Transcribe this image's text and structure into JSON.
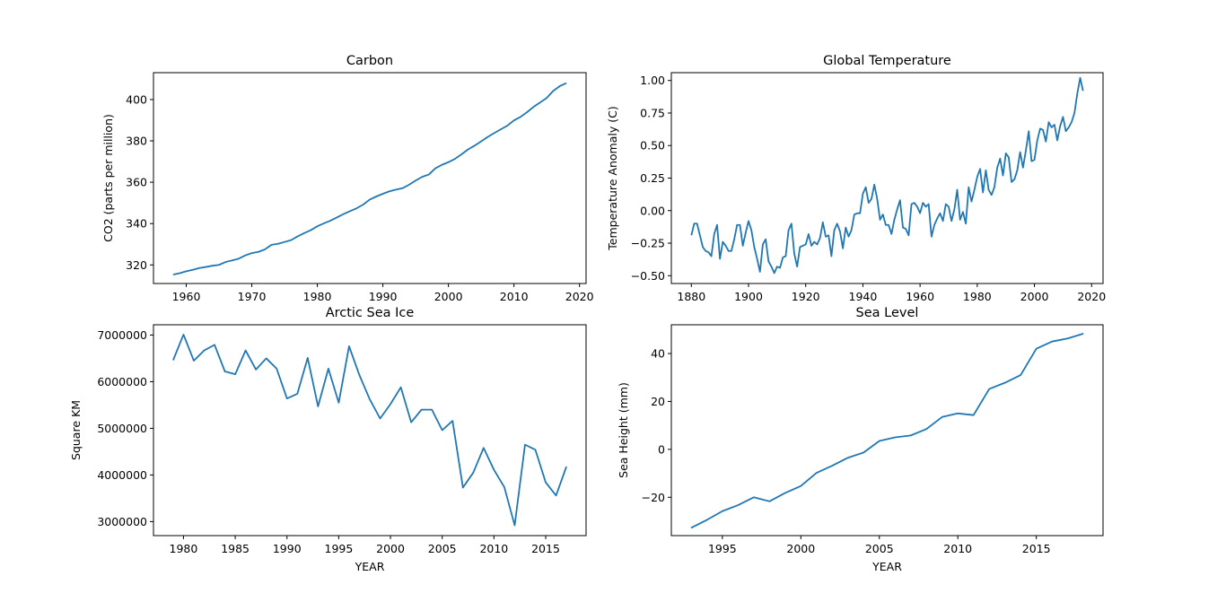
{
  "chart_data": [
    {
      "type": "line",
      "title": "Carbon",
      "xlabel": "",
      "ylabel": "CO2 (parts per million)",
      "xlim": [
        1955,
        2021
      ],
      "ylim": [
        311,
        413
      ],
      "xticks": [
        1960,
        1970,
        1980,
        1990,
        2000,
        2010,
        2020
      ],
      "yticks": [
        320,
        340,
        360,
        380,
        400
      ],
      "grid": false,
      "color": "#1f77b4",
      "x": [
        1958,
        1959,
        1960,
        1961,
        1962,
        1963,
        1964,
        1965,
        1966,
        1967,
        1968,
        1969,
        1970,
        1971,
        1972,
        1973,
        1974,
        1975,
        1976,
        1977,
        1978,
        1979,
        1980,
        1981,
        1982,
        1983,
        1984,
        1985,
        1986,
        1987,
        1988,
        1989,
        1990,
        1991,
        1992,
        1993,
        1994,
        1995,
        1996,
        1997,
        1998,
        1999,
        2000,
        2001,
        2002,
        2003,
        2004,
        2005,
        2006,
        2007,
        2008,
        2009,
        2010,
        2011,
        2012,
        2013,
        2014,
        2015,
        2016,
        2017,
        2018
      ],
      "y": [
        315.3,
        316.0,
        316.9,
        317.6,
        318.5,
        319.0,
        319.6,
        320.0,
        321.4,
        322.2,
        323.0,
        324.6,
        325.7,
        326.3,
        327.5,
        329.7,
        330.2,
        331.1,
        332.0,
        333.8,
        335.4,
        336.8,
        338.7,
        340.1,
        341.4,
        343.0,
        344.6,
        346.0,
        347.4,
        349.2,
        351.6,
        353.1,
        354.4,
        355.6,
        356.4,
        357.1,
        358.8,
        360.8,
        362.6,
        363.7,
        366.7,
        368.4,
        369.7,
        371.3,
        373.5,
        375.9,
        377.7,
        379.8,
        381.9,
        383.8,
        385.6,
        387.4,
        389.9,
        391.6,
        393.9,
        396.5,
        398.6,
        400.8,
        404.2,
        406.5,
        408.0
      ]
    },
    {
      "type": "line",
      "title": "Global Temperature",
      "xlabel": "",
      "ylabel": "Temperature Anomaly (C)",
      "xlim": [
        1873,
        2024
      ],
      "ylim": [
        -0.56,
        1.06
      ],
      "xticks": [
        1880,
        1900,
        1920,
        1940,
        1960,
        1980,
        2000,
        2020
      ],
      "yticks": [
        -0.5,
        -0.25,
        0.0,
        0.25,
        0.5,
        0.75,
        1.0
      ],
      "ytick_labels": [
        "−0.50",
        "−0.25",
        "0.00",
        "0.25",
        "0.50",
        "0.75",
        "1.00"
      ],
      "grid": false,
      "color": "#1f77b4",
      "x": [
        1880,
        1881,
        1882,
        1883,
        1884,
        1885,
        1886,
        1887,
        1888,
        1889,
        1890,
        1891,
        1892,
        1893,
        1894,
        1895,
        1896,
        1897,
        1898,
        1899,
        1900,
        1901,
        1902,
        1903,
        1904,
        1905,
        1906,
        1907,
        1908,
        1909,
        1910,
        1911,
        1912,
        1913,
        1914,
        1915,
        1916,
        1917,
        1918,
        1919,
        1920,
        1921,
        1922,
        1923,
        1924,
        1925,
        1926,
        1927,
        1928,
        1929,
        1930,
        1931,
        1932,
        1933,
        1934,
        1935,
        1936,
        1937,
        1938,
        1939,
        1940,
        1941,
        1942,
        1943,
        1944,
        1945,
        1946,
        1947,
        1948,
        1949,
        1950,
        1951,
        1952,
        1953,
        1954,
        1955,
        1956,
        1957,
        1958,
        1959,
        1960,
        1961,
        1962,
        1963,
        1964,
        1965,
        1966,
        1967,
        1968,
        1969,
        1970,
        1971,
        1972,
        1973,
        1974,
        1975,
        1976,
        1977,
        1978,
        1979,
        1980,
        1981,
        1982,
        1983,
        1984,
        1985,
        1986,
        1987,
        1988,
        1989,
        1990,
        1991,
        1992,
        1993,
        1994,
        1995,
        1996,
        1997,
        1998,
        1999,
        2000,
        2001,
        2002,
        2003,
        2004,
        2005,
        2006,
        2007,
        2008,
        2009,
        2010,
        2011,
        2012,
        2013,
        2014,
        2015,
        2016,
        2017
      ],
      "y": [
        -0.19,
        -0.1,
        -0.1,
        -0.19,
        -0.28,
        -0.31,
        -0.32,
        -0.35,
        -0.18,
        -0.11,
        -0.37,
        -0.24,
        -0.27,
        -0.31,
        -0.31,
        -0.22,
        -0.11,
        -0.11,
        -0.27,
        -0.17,
        -0.08,
        -0.15,
        -0.28,
        -0.37,
        -0.47,
        -0.26,
        -0.22,
        -0.39,
        -0.43,
        -0.48,
        -0.43,
        -0.44,
        -0.36,
        -0.35,
        -0.15,
        -0.1,
        -0.33,
        -0.43,
        -0.28,
        -0.27,
        -0.26,
        -0.18,
        -0.27,
        -0.24,
        -0.26,
        -0.21,
        -0.09,
        -0.2,
        -0.19,
        -0.35,
        -0.15,
        -0.1,
        -0.16,
        -0.29,
        -0.13,
        -0.2,
        -0.15,
        -0.03,
        -0.02,
        -0.02,
        0.13,
        0.18,
        0.06,
        0.09,
        0.2,
        0.09,
        -0.07,
        -0.03,
        -0.11,
        -0.11,
        -0.18,
        -0.07,
        0.01,
        0.08,
        -0.13,
        -0.14,
        -0.19,
        0.05,
        0.06,
        0.03,
        -0.02,
        0.06,
        0.03,
        0.05,
        -0.2,
        -0.11,
        -0.06,
        -0.02,
        -0.08,
        0.05,
        0.03,
        -0.08,
        0.01,
        0.16,
        -0.07,
        -0.01,
        -0.1,
        0.18,
        0.07,
        0.16,
        0.26,
        0.32,
        0.14,
        0.31,
        0.16,
        0.12,
        0.18,
        0.33,
        0.4,
        0.27,
        0.44,
        0.41,
        0.22,
        0.24,
        0.31,
        0.45,
        0.33,
        0.46,
        0.61,
        0.38,
        0.39,
        0.54,
        0.63,
        0.62,
        0.53,
        0.68,
        0.64,
        0.66,
        0.54,
        0.65,
        0.72,
        0.61,
        0.64,
        0.68,
        0.75,
        0.9,
        1.02,
        0.92
      ]
    },
    {
      "type": "line",
      "title": "Arctic Sea Ice",
      "xlabel": "YEAR",
      "ylabel": "Square KM",
      "xlim": [
        1977.1,
        2018.9
      ],
      "ylim": [
        2700000,
        7220000
      ],
      "xticks": [
        1980,
        1985,
        1990,
        1995,
        2000,
        2005,
        2010,
        2015
      ],
      "yticks": [
        3000000,
        4000000,
        5000000,
        6000000,
        7000000
      ],
      "grid": false,
      "color": "#1f77b4",
      "x": [
        1979,
        1980,
        1981,
        1982,
        1983,
        1984,
        1985,
        1986,
        1987,
        1988,
        1989,
        1990,
        1991,
        1992,
        1993,
        1994,
        1995,
        1996,
        1997,
        1998,
        1999,
        2000,
        2001,
        2002,
        2003,
        2004,
        2005,
        2006,
        2007,
        2008,
        2009,
        2010,
        2011,
        2012,
        2013,
        2014,
        2015,
        2016,
        2017
      ],
      "y": [
        6460000,
        7010000,
        6450000,
        6670000,
        6790000,
        6220000,
        6160000,
        6670000,
        6260000,
        6500000,
        6280000,
        5640000,
        5740000,
        6510000,
        5470000,
        6280000,
        5550000,
        6760000,
        6140000,
        5620000,
        5210000,
        5520000,
        5880000,
        5130000,
        5400000,
        5400000,
        4960000,
        5160000,
        3730000,
        4050000,
        4580000,
        4110000,
        3740000,
        2920000,
        4650000,
        4540000,
        3840000,
        3560000,
        4180000
      ]
    },
    {
      "type": "line",
      "title": "Sea Level",
      "xlabel": "YEAR",
      "ylabel": "Sea Height (mm)",
      "xlim": [
        1991.75,
        2019.25
      ],
      "ylim": [
        -36,
        52
      ],
      "xticks": [
        1995,
        2000,
        2005,
        2010,
        2015
      ],
      "yticks": [
        -20,
        0,
        20,
        40
      ],
      "ytick_labels": [
        "−20",
        "0",
        "20",
        "40"
      ],
      "grid": false,
      "color": "#1f77b4",
      "x": [
        1993,
        1994,
        1995,
        1996,
        1997,
        1998,
        1999,
        2000,
        2001,
        2002,
        2003,
        2004,
        2005,
        2006,
        2007,
        2008,
        2009,
        2010,
        2011,
        2012,
        2013,
        2014,
        2015,
        2016,
        2017,
        2018
      ],
      "y": [
        -32.8,
        -29.5,
        -25.8,
        -23.3,
        -20.0,
        -21.7,
        -18.2,
        -15.3,
        -9.8,
        -6.8,
        -3.5,
        -1.3,
        3.5,
        5.0,
        5.8,
        8.5,
        13.5,
        15.0,
        14.3,
        25.2,
        27.8,
        31.0,
        42.0,
        45.0,
        46.3,
        48.3
      ]
    }
  ]
}
